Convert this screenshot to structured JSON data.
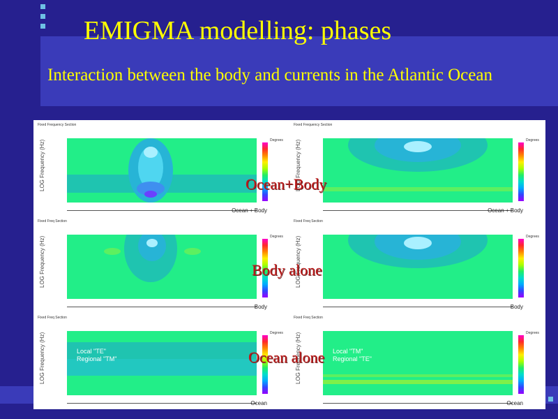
{
  "slide": {
    "title": "EMIGMA modelling: phases",
    "subtitle": "Interaction between the body and currents in the Atlantic Ocean"
  },
  "overlays": [
    "Ocean+Body",
    "Body alone",
    "Ocean alone"
  ],
  "panels": [
    {
      "header": "Fixed Frequency Section",
      "tag": "Ocean + Body",
      "ylabel": "LOG Frequency (Hz)",
      "colorbar": "Degrees"
    },
    {
      "header": "Fixed Frequency Section",
      "tag": "Ocean + Body",
      "ylabel": "LOG Frequency (Hz)",
      "colorbar": "Degrees"
    },
    {
      "header": "Fixed Freq Section",
      "tag": "Body",
      "ylabel": "LOG Frequency (Hz)",
      "colorbar": "Degrees"
    },
    {
      "header": "Fixed Freq Section",
      "tag": "Body",
      "ylabel": "LOG Frequency (Hz)",
      "colorbar": "Degrees"
    },
    {
      "header": "Fixed Freq Section",
      "tag": "Ocean",
      "ylabel": "LOG Frequency (Hz)",
      "colorbar": "Degrees",
      "local": "Local \"TE\"",
      "regional": "Regional \"TM\""
    },
    {
      "header": "Fixed Freq Section",
      "tag": "Ocean",
      "ylabel": "LOG Frequency (Hz)",
      "colorbar": "Degrees",
      "local": "Local \"TM\"",
      "regional": "Regional \"TE\""
    }
  ]
}
